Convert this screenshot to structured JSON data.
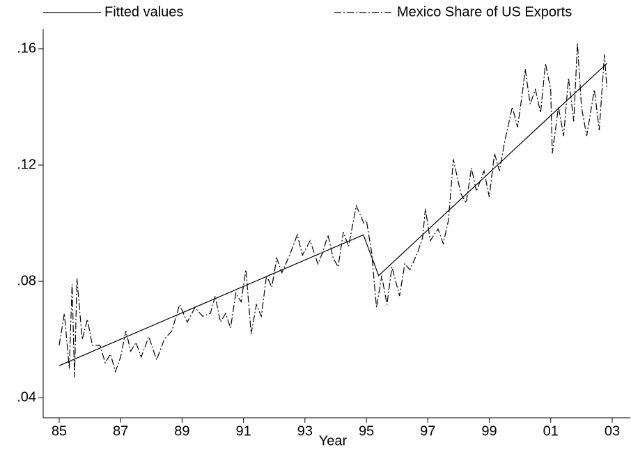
{
  "chart_data": {
    "type": "line",
    "x_label": "Year",
    "legend": "top",
    "xlim": [
      84.48,
      103.59
    ],
    "ylim": [
      0.0331,
      0.1667
    ],
    "xticks": [
      85,
      87,
      89,
      91,
      93,
      95,
      97,
      99,
      {
        "value": 101,
        "label": "01"
      },
      {
        "value": 103,
        "label": "03"
      }
    ],
    "yticks": [
      {
        "value": 0.04,
        "label": ".04"
      },
      {
        "value": 0.08,
        "label": ".08"
      },
      {
        "value": 0.12,
        "label": ".12"
      },
      {
        "value": 0.16,
        "label": ".16"
      }
    ],
    "series": [
      {
        "name": "Fitted values",
        "color": "#000000",
        "linestyle": "solid",
        "x": [
          85,
          94.9,
          95.4,
          102.83
        ],
        "values": [
          0.051,
          0.096,
          0.082,
          0.155
        ]
      },
      {
        "name": "Mexico Share of US Exports",
        "color": "#000000",
        "linestyle": "dashdot",
        "x": [
          85.0,
          85.17,
          85.33,
          85.42,
          85.5,
          85.58,
          85.75,
          85.92,
          86.08,
          86.33,
          86.5,
          86.67,
          86.83,
          87.0,
          87.17,
          87.33,
          87.5,
          87.67,
          87.92,
          88.17,
          88.42,
          88.67,
          88.92,
          89.17,
          89.42,
          89.67,
          89.92,
          90.08,
          90.25,
          90.42,
          90.58,
          90.75,
          90.92,
          91.08,
          91.25,
          91.42,
          91.58,
          91.75,
          91.92,
          92.08,
          92.25,
          92.5,
          92.75,
          92.92,
          93.17,
          93.42,
          93.58,
          93.75,
          93.92,
          94.08,
          94.25,
          94.42,
          94.67,
          94.92,
          95.0,
          95.17,
          95.33,
          95.5,
          95.67,
          95.83,
          96.08,
          96.25,
          96.42,
          96.67,
          96.83,
          96.92,
          97.08,
          97.33,
          97.5,
          97.67,
          97.83,
          98.08,
          98.25,
          98.42,
          98.58,
          98.83,
          99.0,
          99.17,
          99.33,
          99.5,
          99.75,
          99.92,
          100.08,
          100.17,
          100.33,
          100.5,
          100.67,
          100.83,
          101.0,
          101.05,
          101.25,
          101.42,
          101.58,
          101.75,
          101.87,
          102.0,
          102.17,
          102.42,
          102.58,
          102.75,
          102.83
        ],
        "values": [
          0.058,
          0.069,
          0.05,
          0.079,
          0.047,
          0.081,
          0.06,
          0.067,
          0.058,
          0.058,
          0.052,
          0.055,
          0.049,
          0.054,
          0.063,
          0.056,
          0.059,
          0.054,
          0.061,
          0.053,
          0.06,
          0.063,
          0.072,
          0.066,
          0.071,
          0.068,
          0.069,
          0.075,
          0.066,
          0.069,
          0.064,
          0.076,
          0.073,
          0.084,
          0.062,
          0.072,
          0.068,
          0.082,
          0.078,
          0.088,
          0.083,
          0.089,
          0.096,
          0.089,
          0.094,
          0.086,
          0.09,
          0.096,
          0.088,
          0.085,
          0.097,
          0.092,
          0.106,
          0.1,
          0.101,
          0.09,
          0.071,
          0.082,
          0.072,
          0.085,
          0.075,
          0.086,
          0.084,
          0.09,
          0.095,
          0.105,
          0.094,
          0.098,
          0.093,
          0.101,
          0.122,
          0.11,
          0.107,
          0.119,
          0.111,
          0.118,
          0.109,
          0.124,
          0.118,
          0.128,
          0.14,
          0.133,
          0.145,
          0.153,
          0.141,
          0.146,
          0.138,
          0.155,
          0.146,
          0.124,
          0.14,
          0.13,
          0.15,
          0.135,
          0.162,
          0.14,
          0.13,
          0.146,
          0.132,
          0.158,
          0.146
        ]
      }
    ]
  }
}
